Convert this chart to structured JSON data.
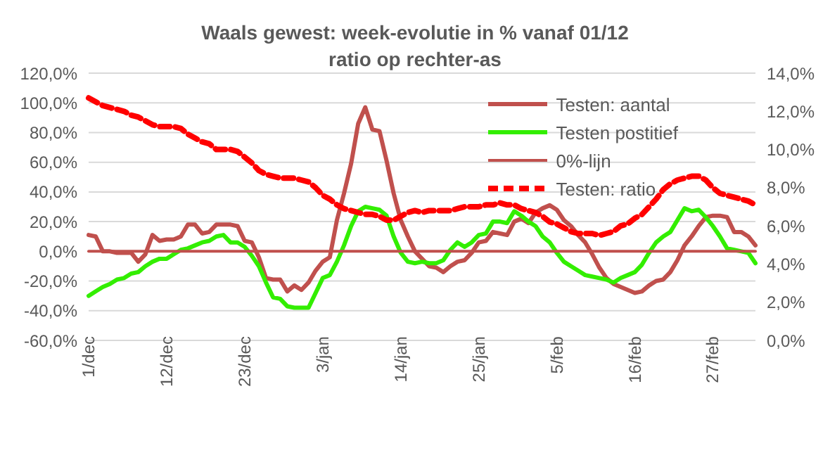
{
  "chart_data": {
    "type": "line",
    "title": "Waals gewest: week-evolutie in % vanaf 01/12",
    "subtitle": "ratio op rechter-as",
    "categories": [
      "1/dec",
      null,
      null,
      null,
      null,
      null,
      null,
      null,
      null,
      null,
      null,
      "12/dec",
      null,
      null,
      null,
      null,
      null,
      null,
      null,
      null,
      null,
      null,
      "23/dec",
      null,
      null,
      null,
      null,
      null,
      null,
      null,
      null,
      null,
      null,
      "3/jan",
      null,
      null,
      null,
      null,
      null,
      null,
      null,
      null,
      null,
      null,
      "14/jan",
      null,
      null,
      null,
      null,
      null,
      null,
      null,
      null,
      null,
      null,
      "25/jan",
      null,
      null,
      null,
      null,
      null,
      null,
      null,
      null,
      null,
      null,
      "5/feb",
      null,
      null,
      null,
      null,
      null,
      null,
      null,
      null,
      null,
      null,
      "16/feb",
      null,
      null,
      null,
      null,
      null,
      null,
      null,
      null,
      null,
      null,
      "27/feb",
      null,
      null,
      null,
      null,
      null,
      null
    ],
    "series": [
      {
        "name": "Testen: aantal",
        "color": "#c0504d",
        "axis": "y",
        "line_style": "solid",
        "values": [
          11,
          10,
          0,
          0,
          -1,
          -1,
          -1,
          -7,
          -2,
          11,
          7,
          8,
          8,
          10,
          18,
          18,
          12,
          13,
          18,
          18,
          18,
          17,
          7,
          6,
          -4,
          -18,
          -19,
          -19,
          -27,
          -23,
          -26,
          -21,
          -13,
          -7,
          -4,
          21,
          39,
          59,
          86,
          97,
          82,
          81,
          61,
          39,
          21,
          10,
          0,
          -5,
          -10,
          -11,
          -14,
          -10,
          -7,
          -6,
          -1,
          6,
          7,
          13,
          12,
          11,
          20,
          22,
          19,
          26,
          29,
          31,
          28,
          21,
          17,
          11,
          6,
          -2,
          -11,
          -18,
          -22,
          -24,
          -26,
          -28,
          -27,
          -23,
          -20,
          -19,
          -14,
          -6,
          4,
          10,
          17,
          23,
          24,
          24,
          23,
          13,
          13,
          10,
          4
        ]
      },
      {
        "name": "Testen postitief",
        "color": "#33ee00",
        "axis": "y",
        "line_style": "solid",
        "values": [
          -30,
          -27,
          -24,
          -22,
          -19,
          -18,
          -15,
          -14,
          -10,
          -7,
          -5,
          -5,
          -2,
          1,
          2,
          4,
          6,
          7,
          10,
          11,
          6,
          6,
          3,
          -3,
          -10,
          -21,
          -31,
          -32,
          -37,
          -38,
          -38,
          -38,
          -28,
          -18,
          -16,
          -7,
          4,
          17,
          27,
          30,
          29,
          28,
          24,
          10,
          -1,
          -7,
          -8,
          -7,
          -8,
          -8,
          -6,
          1,
          6,
          3,
          6,
          11,
          12,
          20,
          20,
          19,
          27,
          24,
          20,
          17,
          10,
          6,
          -1,
          -7,
          -10,
          -13,
          -16,
          -17,
          -18,
          -19,
          -21,
          -18,
          -16,
          -14,
          -9,
          -1,
          6,
          10,
          13,
          21,
          29,
          27,
          28,
          23,
          17,
          10,
          2,
          1,
          0,
          -1,
          -8
        ]
      },
      {
        "name": "0%-lijn",
        "color": "#c0504d",
        "axis": "y",
        "line_style": "solid",
        "values": [
          0,
          0,
          0,
          0,
          0,
          0,
          0,
          0,
          0,
          0,
          0,
          0,
          0,
          0,
          0,
          0,
          0,
          0,
          0,
          0,
          0,
          0,
          0,
          0,
          0,
          0,
          0,
          0,
          0,
          0,
          0,
          0,
          0,
          0,
          0,
          0,
          0,
          0,
          0,
          0,
          0,
          0,
          0,
          0,
          0,
          0,
          0,
          0,
          0,
          0,
          0,
          0,
          0,
          0,
          0,
          0,
          0,
          0,
          0,
          0,
          0,
          0,
          0,
          0,
          0,
          0,
          0,
          0,
          0,
          0,
          0,
          0,
          0,
          0,
          0,
          0,
          0,
          0,
          0,
          0,
          0,
          0,
          0,
          0,
          0,
          0,
          0,
          0,
          0,
          0,
          0,
          0,
          0,
          0,
          0
        ]
      },
      {
        "name": "Testen: ratio",
        "color": "#ff0000",
        "axis": "y2",
        "line_style": "dashed",
        "values": [
          12.7,
          12.5,
          12.3,
          12.2,
          12.1,
          12.0,
          11.8,
          11.7,
          11.5,
          11.3,
          11.2,
          11.2,
          11.2,
          11.1,
          10.8,
          10.6,
          10.4,
          10.3,
          10.0,
          10.0,
          10.0,
          9.9,
          9.6,
          9.3,
          8.9,
          8.7,
          8.6,
          8.5,
          8.5,
          8.5,
          8.4,
          8.3,
          8.0,
          7.6,
          7.4,
          7.1,
          6.9,
          6.8,
          6.7,
          6.6,
          6.6,
          6.5,
          6.3,
          6.3,
          6.5,
          6.7,
          6.8,
          6.7,
          6.8,
          6.8,
          6.8,
          6.8,
          6.9,
          7.0,
          7.0,
          7.0,
          7.1,
          7.1,
          7.2,
          7.1,
          7.1,
          6.9,
          6.8,
          6.7,
          6.5,
          6.2,
          6.1,
          5.9,
          5.7,
          5.6,
          5.6,
          5.6,
          5.5,
          5.6,
          5.7,
          6.0,
          6.1,
          6.4,
          6.6,
          7.0,
          7.4,
          7.9,
          8.2,
          8.4,
          8.5,
          8.6,
          8.6,
          8.4,
          8.0,
          7.7,
          7.6,
          7.5,
          7.4,
          7.3,
          7.1
        ]
      }
    ],
    "ylim": [
      -60,
      120
    ],
    "yticks": [
      {
        "value": -60,
        "label": "-60,0%"
      },
      {
        "value": -40,
        "label": "-40,0%"
      },
      {
        "value": -20,
        "label": "-20,0%"
      },
      {
        "value": 0,
        "label": "0,0%"
      },
      {
        "value": 20,
        "label": "20,0%"
      },
      {
        "value": 40,
        "label": "40,0%"
      },
      {
        "value": 60,
        "label": "60,0%"
      },
      {
        "value": 80,
        "label": "80,0%"
      },
      {
        "value": 100,
        "label": "100,0%"
      },
      {
        "value": 120,
        "label": "120,0%"
      }
    ],
    "y2lim": [
      0,
      14
    ],
    "y2ticks": [
      {
        "value": 0,
        "label": "0,0%"
      },
      {
        "value": 2,
        "label": "2,0%"
      },
      {
        "value": 4,
        "label": "4,0%"
      },
      {
        "value": 6,
        "label": "6,0%"
      },
      {
        "value": 8,
        "label": "8,0%"
      },
      {
        "value": 10,
        "label": "10,0%"
      },
      {
        "value": 12,
        "label": "12,0%"
      },
      {
        "value": 14,
        "label": "14,0%"
      }
    ],
    "grid": "y",
    "legend": "top right",
    "marker": "none"
  }
}
